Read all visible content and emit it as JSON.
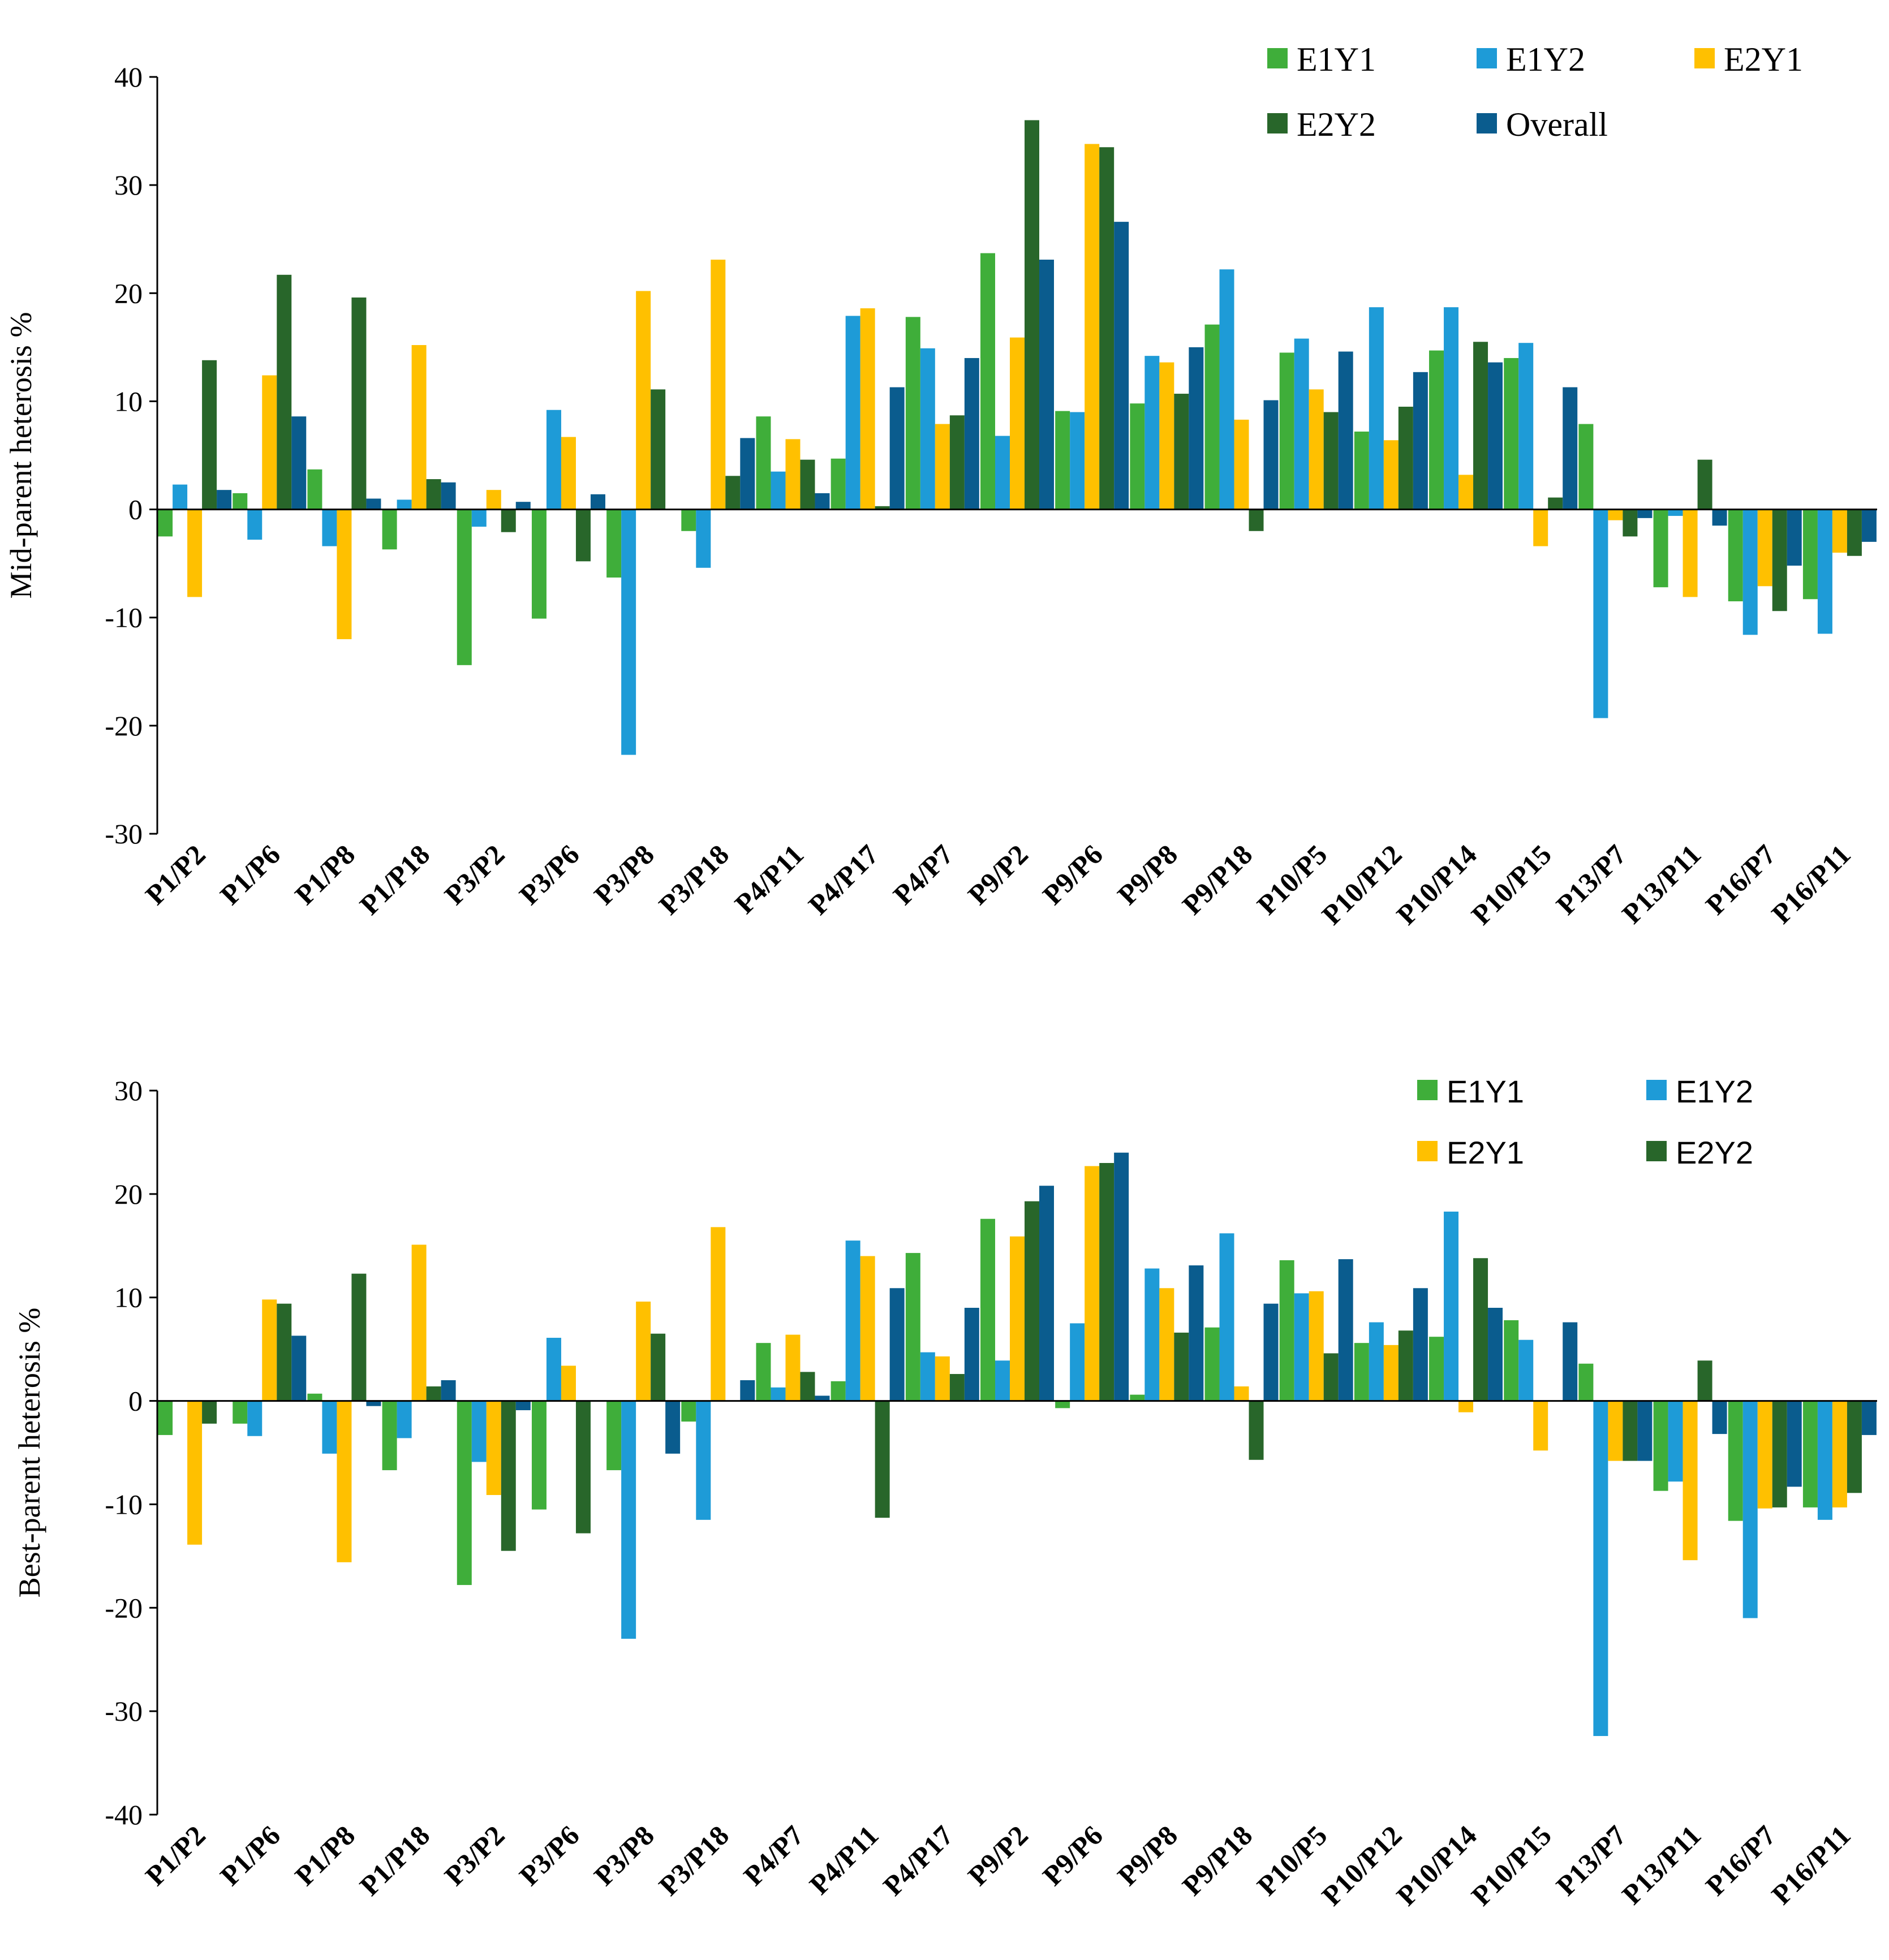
{
  "colors": {
    "E1Y1": "#3FAE3A",
    "E1Y2": "#1E9BD7",
    "E2Y1": "#FFC000",
    "E2Y2": "#28662A",
    "Overall": "#0A5C8E"
  },
  "chart_data": [
    {
      "type": "bar",
      "ylabel": "Mid-parent heterosis %",
      "ylim": [
        -30,
        40
      ],
      "yticks": [
        40,
        30,
        20,
        10,
        0,
        -10,
        -20,
        -30
      ],
      "ytick_labels": [
        "40",
        "30",
        "20",
        "10",
        "0",
        "-10",
        "-20",
        "-30"
      ],
      "legend_placement": "top-right",
      "categories": [
        "P1/P2",
        "P1/P6",
        "P1/P8",
        "P1/P18",
        "P3/P2",
        "P3/P6",
        "P3/P8",
        "P3/P18",
        "P4/P11",
        "P4/P17",
        "P4/P7",
        "P9/P2",
        "P9/P6",
        "P9/P8",
        "P9/P18",
        "P10/P5",
        "P10/P12",
        "P10/P14",
        "P10/P15",
        "P13/P7",
        "P13/P11",
        "P16/P7",
        "P16/P11"
      ],
      "series": [
        {
          "name": "E1Y1",
          "values": [
            -2.5,
            1.5,
            3.7,
            -3.7,
            -14.4,
            -10.1,
            -6.3,
            -2.0,
            8.6,
            4.7,
            17.8,
            23.7,
            9.1,
            9.8,
            17.1,
            14.5,
            7.2,
            14.7,
            14.0,
            7.9,
            -7.2,
            -8.5,
            -8.3
          ]
        },
        {
          "name": "E1Y2",
          "values": [
            2.3,
            -2.8,
            -3.4,
            0.9,
            -1.6,
            9.2,
            -22.7,
            -5.4,
            3.5,
            17.9,
            14.9,
            6.8,
            9.0,
            14.2,
            22.2,
            15.8,
            18.7,
            18.7,
            15.4,
            -19.3,
            -0.6,
            -11.6,
            -11.5
          ]
        },
        {
          "name": "E2Y1",
          "values": [
            -8.1,
            12.4,
            -12.0,
            15.2,
            1.8,
            6.7,
            20.2,
            23.1,
            6.5,
            18.6,
            7.9,
            15.9,
            33.8,
            13.6,
            8.3,
            11.1,
            6.4,
            3.2,
            -3.4,
            -1.0,
            -8.1,
            -7.1,
            -4.0
          ]
        },
        {
          "name": "E2Y2",
          "values": [
            13.8,
            21.7,
            19.6,
            2.8,
            -2.1,
            -4.8,
            11.1,
            3.1,
            4.6,
            0.3,
            8.7,
            36.0,
            33.5,
            10.7,
            -2.0,
            9.0,
            9.5,
            15.5,
            1.1,
            -2.5,
            4.6,
            -9.4,
            -4.3
          ]
        },
        {
          "name": "Overall",
          "values": [
            1.8,
            8.6,
            1.0,
            2.5,
            0.7,
            1.4,
            0.0,
            6.6,
            1.5,
            11.3,
            14.0,
            23.1,
            26.6,
            15.0,
            10.1,
            14.6,
            12.7,
            13.6,
            11.3,
            -0.8,
            -1.5,
            -5.2,
            -3.0
          ]
        }
      ],
      "legend_entries": [
        "E1Y1",
        "E1Y2",
        "E2Y1",
        "E2Y2",
        "Overall"
      ]
    },
    {
      "type": "bar",
      "ylabel": "Best-parent heterosis %",
      "ylim": [
        -40,
        30
      ],
      "yticks": [
        30,
        20,
        10,
        0,
        -10,
        -20,
        -30,
        -40
      ],
      "ytick_labels": [
        "30",
        "20",
        "10",
        "0",
        "-10",
        "-20",
        "-30",
        "-40"
      ],
      "legend_placement": "top-right",
      "categories": [
        "P1/P2",
        "P1/P6",
        "P1/P8",
        "P1/P18",
        "P3/P2",
        "P3/P6",
        "P3/P8",
        "P3/P18",
        "P4/P7",
        "P4/P11",
        "P4/P17",
        "P9/P2",
        "P9/P6",
        "P9/P8",
        "P9/P18",
        "P10/P5",
        "P10/P12",
        "P10/P14",
        "P10/P15",
        "P13/P7",
        "P13/P11",
        "P16/P7",
        "P16/P11"
      ],
      "series": [
        {
          "name": "E1Y1",
          "values": [
            -3.3,
            -2.2,
            0.7,
            -6.7,
            -17.8,
            -10.5,
            -6.7,
            -2.0,
            5.6,
            1.9,
            14.3,
            17.6,
            -0.7,
            0.6,
            7.1,
            13.6,
            5.6,
            6.2,
            7.8,
            3.6,
            -8.7,
            -11.6,
            -10.3
          ]
        },
        {
          "name": "E1Y2",
          "values": [
            0.0,
            -3.4,
            -5.1,
            -3.6,
            -5.9,
            6.1,
            -23.0,
            -11.5,
            1.3,
            15.5,
            4.7,
            3.9,
            7.5,
            12.8,
            16.2,
            10.4,
            7.6,
            18.3,
            5.9,
            -32.4,
            -7.8,
            -21.0,
            -11.5
          ]
        },
        {
          "name": "E2Y1",
          "values": [
            -13.9,
            9.8,
            -15.6,
            15.1,
            -9.1,
            3.4,
            9.6,
            16.8,
            6.4,
            14.0,
            4.3,
            15.9,
            22.7,
            10.9,
            1.4,
            10.6,
            5.4,
            -1.1,
            -4.8,
            -5.8,
            -15.4,
            -10.4,
            -10.3
          ]
        },
        {
          "name": "E2Y2",
          "values": [
            -2.2,
            9.4,
            12.3,
            1.4,
            -14.5,
            -12.8,
            6.5,
            0.0,
            2.8,
            -11.3,
            2.6,
            19.3,
            23.0,
            6.6,
            -5.7,
            4.6,
            6.8,
            13.8,
            0.0,
            -5.8,
            3.9,
            -10.3,
            -8.9
          ]
        },
        {
          "name": "Overall",
          "values": [
            0.0,
            6.3,
            -0.5,
            2.0,
            -0.9,
            0.0,
            -5.1,
            2.0,
            0.5,
            10.9,
            9.0,
            20.8,
            24.0,
            13.1,
            9.4,
            13.7,
            10.9,
            9.0,
            7.6,
            -5.8,
            -3.2,
            -8.3,
            -3.3
          ]
        }
      ],
      "legend_entries": [
        "E1Y1",
        "E1Y2",
        "E2Y1",
        "E2Y2"
      ]
    }
  ]
}
